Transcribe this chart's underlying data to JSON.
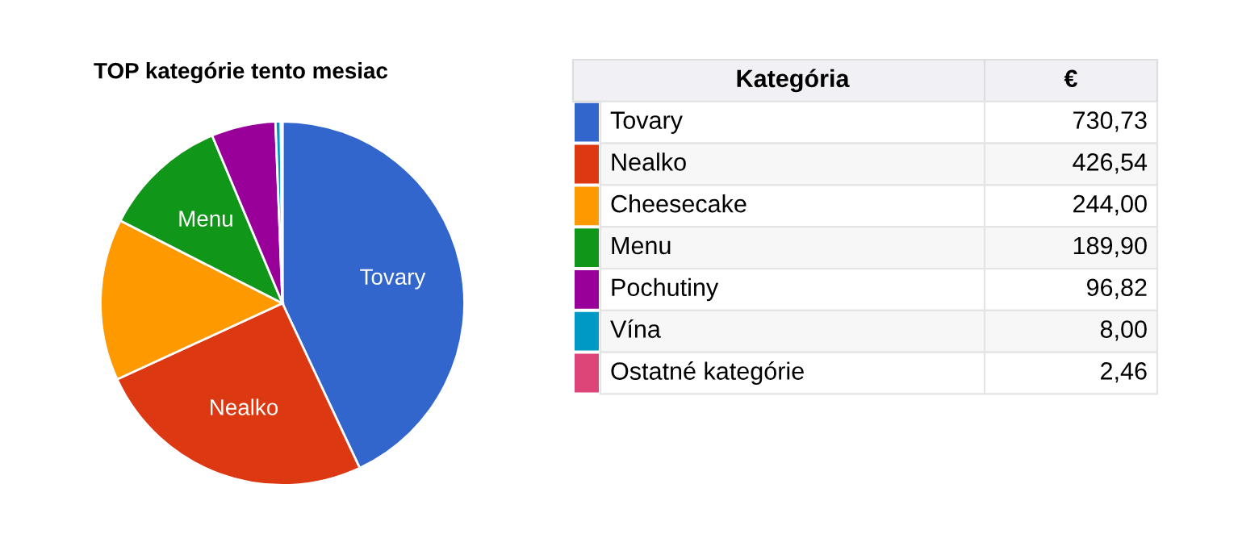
{
  "chart_data": {
    "type": "pie",
    "title": "TOP kategórie tento mesiac",
    "legend_title": "Kategória",
    "annotations": [
      "€"
    ],
    "legend": "right",
    "categories": [
      "Tovary",
      "Nealko",
      "Cheesecake",
      "Menu",
      "Pochutiny",
      "Vína",
      "Ostatné kategórie"
    ],
    "values": [
      730.73,
      426.54,
      244.0,
      189.9,
      96.82,
      8.0,
      2.46
    ],
    "value_labels": [
      "730,73",
      "426,54",
      "244,00",
      "189,90",
      "96,82",
      "8,00",
      "2,46"
    ],
    "colors": [
      "#3366cc",
      "#dc3912",
      "#ff9900",
      "#109618",
      "#990099",
      "#0099c6",
      "#dd4477"
    ]
  }
}
